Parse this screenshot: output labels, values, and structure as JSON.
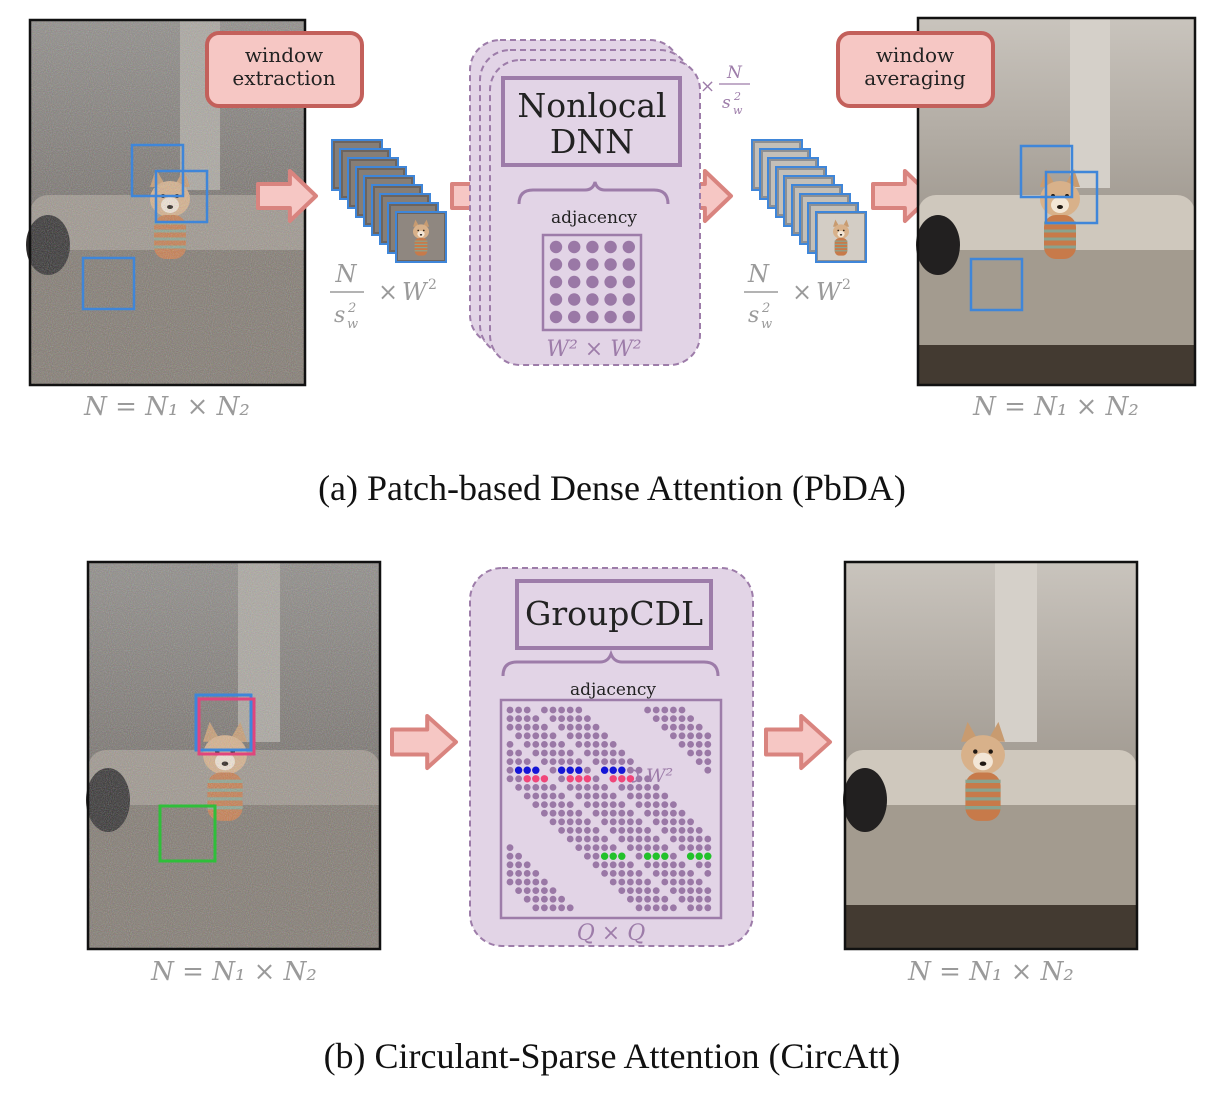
{
  "panel_a": {
    "caption": "(a) Patch-based Dense Attention (PbDA)",
    "tag_extraction": [
      "window",
      "extraction"
    ],
    "tag_averaging": [
      "window",
      "averaging"
    ],
    "dnn_title": [
      "Nonlocal",
      "DNN"
    ],
    "adjacency_label": "adjacency",
    "matrix_label": "W² × W²",
    "stack_count_label": "× N / s_w²",
    "patches_count_label": "N / s_w² × W²",
    "image_size_label": "N = N₁ × N₂"
  },
  "panel_b": {
    "caption": "(b) Circulant-Sparse Attention (CircAtt)",
    "dnn_title": "GroupCDL",
    "adjacency_label": "adjacency",
    "matrix_label": "Q × Q",
    "window_label": "W²",
    "image_size_label": "N = N₁ × N₂"
  },
  "colors": {
    "arrow": "#d9847f",
    "tag_fill": "#f6c7c4",
    "tag_border": "#c3605b",
    "panel_fill": "#e2d4e6",
    "panel_border": "#9d7ca9",
    "dot": "#9a78a6",
    "blue_window": "#3f86d9",
    "pink_window": "#e0457d",
    "green_window": "#2fbf3a",
    "blue_dot": "#1515d6",
    "pink_dot": "#f0457a",
    "green_dot": "#22c12a"
  }
}
